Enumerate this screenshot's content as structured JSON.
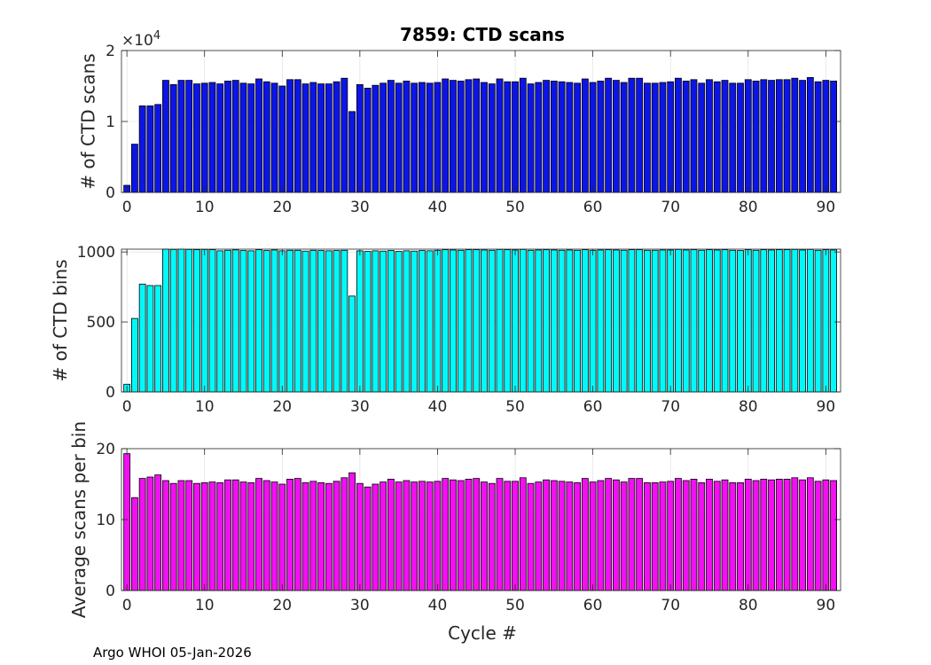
{
  "title": "7859: CTD scans",
  "footer": "Argo WHOI 05-Jan-2026",
  "xlabel": "Cycle #",
  "chart_data": [
    {
      "type": "bar",
      "id": "scans",
      "ylabel": "# of CTD scans",
      "exponent_label": "×10",
      "exponent_power": "4",
      "color": "#0d15e6",
      "ylim": [
        0,
        20000
      ],
      "yticks": [
        0,
        10000,
        20000
      ],
      "ytick_labels": [
        "0",
        "1",
        "2"
      ],
      "xlim": [
        -0.7,
        91.9
      ],
      "xticks": [
        0,
        10,
        20,
        30,
        40,
        50,
        60,
        70,
        80,
        90
      ],
      "xtick_labels": [
        "0",
        "10",
        "20",
        "30",
        "40",
        "50",
        "60",
        "70",
        "80",
        "90"
      ],
      "x": [
        0,
        1,
        2,
        3,
        4,
        5,
        6,
        7,
        8,
        9,
        10,
        11,
        12,
        13,
        14,
        15,
        16,
        17,
        18,
        19,
        20,
        21,
        22,
        23,
        24,
        25,
        26,
        27,
        28,
        29,
        30,
        31,
        32,
        33,
        34,
        35,
        36,
        37,
        38,
        39,
        40,
        41,
        42,
        43,
        44,
        45,
        46,
        47,
        48,
        49,
        50,
        51,
        52,
        53,
        54,
        55,
        56,
        57,
        58,
        59,
        60,
        61,
        62,
        63,
        64,
        65,
        66,
        67,
        68,
        69,
        70,
        71,
        72,
        73,
        74,
        75,
        76,
        77,
        78,
        79,
        80,
        81,
        82,
        83,
        84,
        85,
        86,
        87,
        88,
        89,
        90,
        91
      ],
      "values": [
        1000,
        6800,
        12200,
        12200,
        12400,
        15800,
        15200,
        15800,
        15800,
        15300,
        15400,
        15500,
        15300,
        15700,
        15800,
        15400,
        15300,
        16000,
        15600,
        15400,
        15000,
        15900,
        15900,
        15300,
        15500,
        15300,
        15300,
        15600,
        16100,
        11400,
        15200,
        14700,
        15100,
        15400,
        15800,
        15400,
        15700,
        15400,
        15500,
        15400,
        15500,
        16000,
        15800,
        15700,
        15900,
        16000,
        15500,
        15300,
        16000,
        15600,
        15600,
        16100,
        15300,
        15500,
        15800,
        15700,
        15600,
        15500,
        15400,
        16000,
        15500,
        15700,
        16100,
        15800,
        15500,
        16100,
        16100,
        15400,
        15400,
        15500,
        15600,
        16100,
        15700,
        15900,
        15400,
        15900,
        15600,
        15800,
        15400,
        15400,
        15900,
        15700,
        15900,
        15800,
        15900,
        15900,
        16100,
        15800,
        16200,
        15600,
        15800,
        15700
      ]
    },
    {
      "type": "bar",
      "id": "bins",
      "ylabel": "# of CTD bins",
      "color": "#00fafa",
      "ylim": [
        0,
        1020
      ],
      "yticks": [
        0,
        500,
        1000
      ],
      "ytick_labels": [
        "0",
        "500",
        "1000"
      ],
      "xlim": [
        -0.7,
        91.9
      ],
      "xticks": [
        0,
        10,
        20,
        30,
        40,
        50,
        60,
        70,
        80,
        90
      ],
      "xtick_labels": [
        "0",
        "10",
        "20",
        "30",
        "40",
        "50",
        "60",
        "70",
        "80",
        "90"
      ],
      "x": [
        0,
        1,
        2,
        3,
        4,
        5,
        6,
        7,
        8,
        9,
        10,
        11,
        12,
        13,
        14,
        15,
        16,
        17,
        18,
        19,
        20,
        21,
        22,
        23,
        24,
        25,
        26,
        27,
        28,
        29,
        30,
        31,
        32,
        33,
        34,
        35,
        36,
        37,
        38,
        39,
        40,
        41,
        42,
        43,
        44,
        45,
        46,
        47,
        48,
        49,
        50,
        51,
        52,
        53,
        54,
        55,
        56,
        57,
        58,
        59,
        60,
        61,
        62,
        63,
        64,
        65,
        66,
        67,
        68,
        69,
        70,
        71,
        72,
        73,
        74,
        75,
        76,
        77,
        78,
        79,
        80,
        81,
        82,
        83,
        84,
        85,
        86,
        87,
        88,
        89,
        90,
        91
      ],
      "values": [
        55,
        525,
        770,
        760,
        760,
        1020,
        1018,
        1020,
        1018,
        1016,
        1018,
        1016,
        1008,
        1012,
        1015,
        1010,
        1008,
        1016,
        1010,
        1014,
        1008,
        1012,
        1012,
        1006,
        1012,
        1010,
        1008,
        1010,
        1012,
        685,
        1008,
        1004,
        1008,
        1006,
        1010,
        1004,
        1008,
        1006,
        1010,
        1008,
        1012,
        1016,
        1014,
        1012,
        1016,
        1016,
        1014,
        1012,
        1018,
        1016,
        1014,
        1018,
        1012,
        1014,
        1016,
        1014,
        1012,
        1014,
        1012,
        1016,
        1012,
        1014,
        1016,
        1014,
        1012,
        1016,
        1016,
        1012,
        1012,
        1014,
        1014,
        1018,
        1014,
        1016,
        1012,
        1016,
        1014,
        1016,
        1012,
        1010,
        1016,
        1012,
        1016,
        1014,
        1016,
        1016,
        1018,
        1014,
        1018,
        1012,
        1016,
        1014
      ]
    },
    {
      "type": "bar",
      "id": "avg",
      "ylabel": "Average scans per bin",
      "color": "#f20ff2",
      "ylim": [
        0,
        20
      ],
      "yticks": [
        0,
        10,
        20
      ],
      "ytick_labels": [
        "0",
        "10",
        "20"
      ],
      "xlim": [
        -0.7,
        91.9
      ],
      "xticks": [
        0,
        10,
        20,
        30,
        40,
        50,
        60,
        70,
        80,
        90
      ],
      "xtick_labels": [
        "0",
        "10",
        "20",
        "30",
        "40",
        "50",
        "60",
        "70",
        "80",
        "90"
      ],
      "x": [
        0,
        1,
        2,
        3,
        4,
        5,
        6,
        7,
        8,
        9,
        10,
        11,
        12,
        13,
        14,
        15,
        16,
        17,
        18,
        19,
        20,
        21,
        22,
        23,
        24,
        25,
        26,
        27,
        28,
        29,
        30,
        31,
        32,
        33,
        34,
        35,
        36,
        37,
        38,
        39,
        40,
        41,
        42,
        43,
        44,
        45,
        46,
        47,
        48,
        49,
        50,
        51,
        52,
        53,
        54,
        55,
        56,
        57,
        58,
        59,
        60,
        61,
        62,
        63,
        64,
        65,
        66,
        67,
        68,
        69,
        70,
        71,
        72,
        73,
        74,
        75,
        76,
        77,
        78,
        79,
        80,
        81,
        82,
        83,
        84,
        85,
        86,
        87,
        88,
        89,
        90,
        91
      ],
      "values": [
        19.3,
        13.1,
        15.8,
        16.0,
        16.3,
        15.5,
        15.1,
        15.5,
        15.5,
        15.1,
        15.2,
        15.3,
        15.2,
        15.6,
        15.6,
        15.3,
        15.2,
        15.8,
        15.5,
        15.3,
        15.0,
        15.7,
        15.8,
        15.2,
        15.4,
        15.2,
        15.1,
        15.4,
        15.9,
        16.6,
        15.1,
        14.6,
        15.0,
        15.3,
        15.7,
        15.3,
        15.5,
        15.3,
        15.4,
        15.3,
        15.4,
        15.8,
        15.6,
        15.5,
        15.7,
        15.8,
        15.3,
        15.1,
        15.8,
        15.4,
        15.4,
        15.9,
        15.1,
        15.3,
        15.6,
        15.5,
        15.4,
        15.3,
        15.2,
        15.8,
        15.3,
        15.5,
        15.8,
        15.6,
        15.3,
        15.8,
        15.8,
        15.2,
        15.2,
        15.3,
        15.4,
        15.8,
        15.5,
        15.7,
        15.2,
        15.7,
        15.4,
        15.6,
        15.2,
        15.2,
        15.7,
        15.5,
        15.7,
        15.6,
        15.7,
        15.7,
        15.9,
        15.6,
        15.9,
        15.4,
        15.6,
        15.5
      ]
    }
  ]
}
